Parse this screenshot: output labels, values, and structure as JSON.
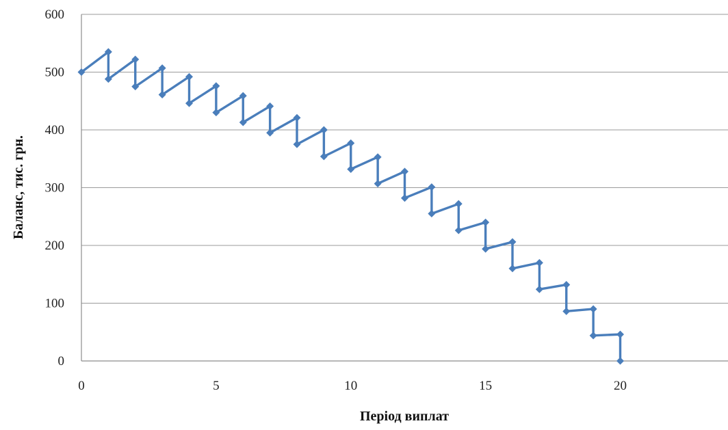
{
  "chart_data": {
    "type": "line",
    "xlabel": "Період виплат",
    "ylabel": "Баланс, тис. грн.",
    "xlim": [
      0,
      24
    ],
    "ylim": [
      0,
      600
    ],
    "x_ticks": [
      0,
      5,
      10,
      15,
      20
    ],
    "y_ticks": [
      0,
      100,
      200,
      300,
      400,
      500,
      600
    ],
    "grid": "horizontal",
    "legend": "none",
    "series": [
      {
        "color": "#4a7ebb",
        "marker": "diamond",
        "points": [
          [
            0,
            500
          ],
          [
            1,
            535
          ],
          [
            1,
            488
          ],
          [
            2,
            522
          ],
          [
            2,
            475
          ],
          [
            3,
            507
          ],
          [
            3,
            461
          ],
          [
            4,
            492
          ],
          [
            4,
            446
          ],
          [
            5,
            476
          ],
          [
            5,
            430
          ],
          [
            6,
            459
          ],
          [
            6,
            413
          ],
          [
            7,
            441
          ],
          [
            7,
            395
          ],
          [
            8,
            421
          ],
          [
            8,
            375
          ],
          [
            9,
            400
          ],
          [
            9,
            354
          ],
          [
            10,
            377
          ],
          [
            10,
            332
          ],
          [
            11,
            353
          ],
          [
            11,
            307
          ],
          [
            12,
            328
          ],
          [
            12,
            282
          ],
          [
            13,
            301
          ],
          [
            13,
            255
          ],
          [
            14,
            272
          ],
          [
            14,
            226
          ],
          [
            15,
            240
          ],
          [
            15,
            194
          ],
          [
            16,
            206
          ],
          [
            16,
            160
          ],
          [
            17,
            170
          ],
          [
            17,
            124
          ],
          [
            18,
            132
          ],
          [
            18,
            86
          ],
          [
            19,
            90
          ],
          [
            19,
            44
          ],
          [
            20,
            46
          ],
          [
            20,
            0
          ]
        ]
      }
    ]
  }
}
